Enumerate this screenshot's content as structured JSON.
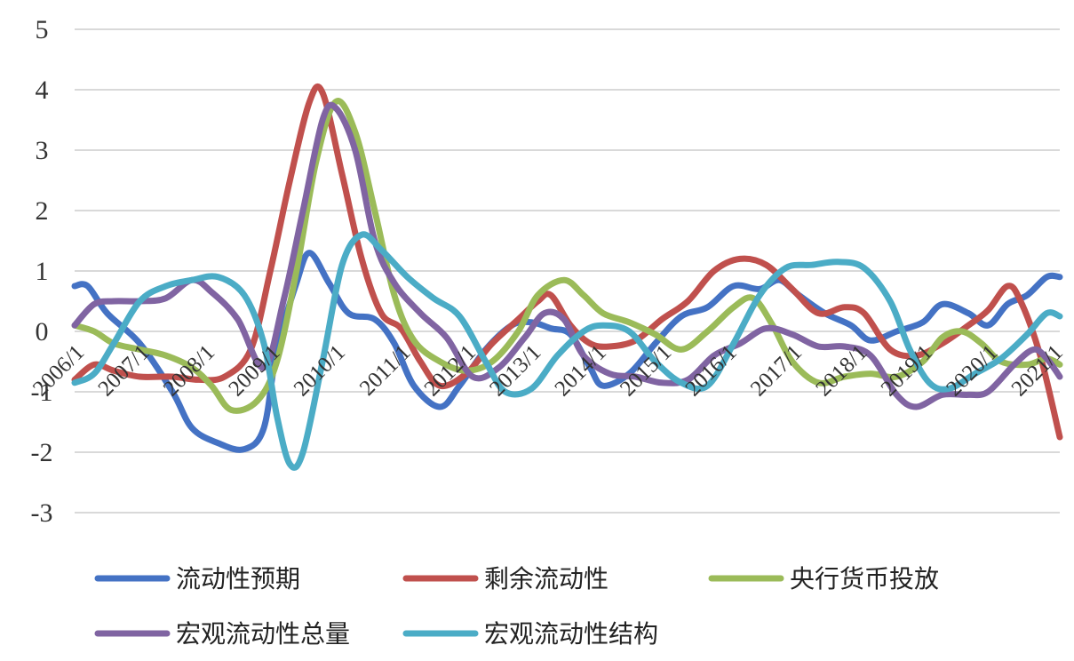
{
  "chart_data": {
    "type": "line",
    "title": "",
    "xlabel": "",
    "ylabel": "",
    "ylim": [
      -3,
      5
    ],
    "yticks": [
      "5",
      "4",
      "3",
      "2",
      "1",
      "0",
      "-1",
      "-2",
      "-3"
    ],
    "xticks": [
      "2006/1",
      "2007/1",
      "2008/1",
      "2009/1",
      "2010/1",
      "2011/1",
      "2012/1",
      "2013/1",
      "2014/1",
      "2015/1",
      "2016/1",
      "2017/1",
      "2018/1",
      "2019/1",
      "2020/1",
      "2021/1"
    ],
    "grid": true,
    "legend_position": "bottom",
    "series": [
      {
        "name": "流动性预期",
        "color": "#4472c4",
        "points": [
          [
            2006.0,
            0.75
          ],
          [
            2006.2,
            0.75
          ],
          [
            2006.5,
            0.3
          ],
          [
            2007.0,
            -0.2
          ],
          [
            2007.5,
            -1.0
          ],
          [
            2007.8,
            -1.6
          ],
          [
            2008.2,
            -1.85
          ],
          [
            2008.6,
            -1.95
          ],
          [
            2008.9,
            -1.6
          ],
          [
            2009.1,
            -0.3
          ],
          [
            2009.4,
            0.8
          ],
          [
            2009.6,
            1.3
          ],
          [
            2009.9,
            0.8
          ],
          [
            2010.2,
            0.3
          ],
          [
            2010.6,
            0.2
          ],
          [
            2010.9,
            -0.2
          ],
          [
            2011.2,
            -0.9
          ],
          [
            2011.6,
            -1.25
          ],
          [
            2011.9,
            -0.9
          ],
          [
            2012.3,
            -0.3
          ],
          [
            2012.7,
            0.1
          ],
          [
            2013.0,
            0.15
          ],
          [
            2013.3,
            0.05
          ],
          [
            2013.6,
            -0.05
          ],
          [
            2013.9,
            -0.6
          ],
          [
            2014.1,
            -0.9
          ],
          [
            2014.5,
            -0.7
          ],
          [
            2014.9,
            -0.2
          ],
          [
            2015.3,
            0.25
          ],
          [
            2015.7,
            0.4
          ],
          [
            2016.1,
            0.75
          ],
          [
            2016.5,
            0.7
          ],
          [
            2016.8,
            0.85
          ],
          [
            2017.1,
            0.6
          ],
          [
            2017.5,
            0.3
          ],
          [
            2017.9,
            0.1
          ],
          [
            2018.2,
            -0.15
          ],
          [
            2018.6,
            0.0
          ],
          [
            2019.0,
            0.15
          ],
          [
            2019.3,
            0.45
          ],
          [
            2019.7,
            0.3
          ],
          [
            2020.0,
            0.1
          ],
          [
            2020.3,
            0.45
          ],
          [
            2020.6,
            0.6
          ],
          [
            2020.9,
            0.9
          ],
          [
            2021.1,
            0.9
          ]
        ]
      },
      {
        "name": "剩余流动性",
        "color": "#c0504d",
        "points": [
          [
            2006.0,
            -0.8
          ],
          [
            2006.3,
            -0.55
          ],
          [
            2006.6,
            -0.65
          ],
          [
            2007.0,
            -0.75
          ],
          [
            2007.5,
            -0.75
          ],
          [
            2007.9,
            -0.8
          ],
          [
            2008.3,
            -0.75
          ],
          [
            2008.7,
            -0.3
          ],
          [
            2009.0,
            1.0
          ],
          [
            2009.3,
            2.5
          ],
          [
            2009.6,
            3.8
          ],
          [
            2009.8,
            3.95
          ],
          [
            2010.1,
            2.6
          ],
          [
            2010.4,
            1.2
          ],
          [
            2010.7,
            0.3
          ],
          [
            2011.0,
            0.05
          ],
          [
            2011.3,
            -0.5
          ],
          [
            2011.6,
            -0.9
          ],
          [
            2012.0,
            -0.7
          ],
          [
            2012.4,
            -0.2
          ],
          [
            2012.8,
            0.2
          ],
          [
            2013.1,
            0.5
          ],
          [
            2013.3,
            0.6
          ],
          [
            2013.6,
            0.1
          ],
          [
            2013.9,
            -0.2
          ],
          [
            2014.2,
            -0.25
          ],
          [
            2014.6,
            -0.15
          ],
          [
            2015.0,
            0.2
          ],
          [
            2015.4,
            0.5
          ],
          [
            2015.8,
            1.0
          ],
          [
            2016.2,
            1.2
          ],
          [
            2016.6,
            1.1
          ],
          [
            2017.0,
            0.7
          ],
          [
            2017.4,
            0.3
          ],
          [
            2017.8,
            0.4
          ],
          [
            2018.1,
            0.3
          ],
          [
            2018.5,
            -0.3
          ],
          [
            2018.9,
            -0.4
          ],
          [
            2019.3,
            -0.2
          ],
          [
            2019.7,
            0.1
          ],
          [
            2020.0,
            0.35
          ],
          [
            2020.3,
            0.75
          ],
          [
            2020.5,
            0.5
          ],
          [
            2020.8,
            -0.4
          ],
          [
            2021.1,
            -1.75
          ]
        ]
      },
      {
        "name": "央行货币投放",
        "color": "#9bbb59",
        "points": [
          [
            2006.0,
            0.1
          ],
          [
            2006.3,
            0.0
          ],
          [
            2006.6,
            -0.2
          ],
          [
            2007.0,
            -0.3
          ],
          [
            2007.4,
            -0.4
          ],
          [
            2007.8,
            -0.6
          ],
          [
            2008.1,
            -0.9
          ],
          [
            2008.4,
            -1.3
          ],
          [
            2008.8,
            -1.15
          ],
          [
            2009.1,
            -0.5
          ],
          [
            2009.4,
            1.0
          ],
          [
            2009.7,
            2.8
          ],
          [
            2010.0,
            3.8
          ],
          [
            2010.3,
            3.3
          ],
          [
            2010.6,
            2.0
          ],
          [
            2010.9,
            0.6
          ],
          [
            2011.2,
            -0.15
          ],
          [
            2011.6,
            -0.5
          ],
          [
            2012.0,
            -0.65
          ],
          [
            2012.4,
            -0.5
          ],
          [
            2012.8,
            0.0
          ],
          [
            2013.1,
            0.6
          ],
          [
            2013.5,
            0.85
          ],
          [
            2013.8,
            0.6
          ],
          [
            2014.1,
            0.3
          ],
          [
            2014.5,
            0.15
          ],
          [
            2014.9,
            -0.05
          ],
          [
            2015.3,
            -0.3
          ],
          [
            2015.7,
            0.0
          ],
          [
            2016.1,
            0.4
          ],
          [
            2016.4,
            0.55
          ],
          [
            2016.7,
            0.1
          ],
          [
            2017.0,
            -0.5
          ],
          [
            2017.4,
            -0.85
          ],
          [
            2017.8,
            -0.75
          ],
          [
            2018.2,
            -0.7
          ],
          [
            2018.6,
            -0.75
          ],
          [
            2019.0,
            -0.5
          ],
          [
            2019.3,
            -0.1
          ],
          [
            2019.6,
            0.0
          ],
          [
            2019.9,
            -0.2
          ],
          [
            2020.2,
            -0.5
          ],
          [
            2020.6,
            -0.55
          ],
          [
            2020.9,
            -0.45
          ],
          [
            2021.1,
            -0.55
          ]
        ]
      },
      {
        "name": "宏观流动性总量",
        "color": "#8064a2",
        "points": [
          [
            2006.0,
            0.1
          ],
          [
            2006.3,
            0.45
          ],
          [
            2006.6,
            0.5
          ],
          [
            2007.0,
            0.5
          ],
          [
            2007.4,
            0.55
          ],
          [
            2007.8,
            0.85
          ],
          [
            2008.1,
            0.65
          ],
          [
            2008.5,
            0.2
          ],
          [
            2008.9,
            -0.6
          ],
          [
            2009.2,
            0.5
          ],
          [
            2009.5,
            2.0
          ],
          [
            2009.8,
            3.5
          ],
          [
            2010.0,
            3.7
          ],
          [
            2010.3,
            3.0
          ],
          [
            2010.6,
            1.5
          ],
          [
            2010.9,
            0.8
          ],
          [
            2011.3,
            0.3
          ],
          [
            2011.7,
            -0.1
          ],
          [
            2012.1,
            -0.75
          ],
          [
            2012.5,
            -0.6
          ],
          [
            2012.9,
            -0.1
          ],
          [
            2013.2,
            0.3
          ],
          [
            2013.5,
            0.2
          ],
          [
            2013.8,
            -0.4
          ],
          [
            2014.2,
            -0.7
          ],
          [
            2014.6,
            -0.75
          ],
          [
            2015.0,
            -0.85
          ],
          [
            2015.4,
            -0.8
          ],
          [
            2015.8,
            -0.4
          ],
          [
            2016.2,
            -0.2
          ],
          [
            2016.6,
            0.05
          ],
          [
            2017.0,
            -0.05
          ],
          [
            2017.4,
            -0.25
          ],
          [
            2017.8,
            -0.25
          ],
          [
            2018.2,
            -0.4
          ],
          [
            2018.6,
            -1.05
          ],
          [
            2018.9,
            -1.25
          ],
          [
            2019.3,
            -1.05
          ],
          [
            2019.7,
            -1.05
          ],
          [
            2020.0,
            -1.0
          ],
          [
            2020.4,
            -0.55
          ],
          [
            2020.7,
            -0.3
          ],
          [
            2020.9,
            -0.45
          ],
          [
            2021.1,
            -0.75
          ]
        ]
      },
      {
        "name": "宏观流动性结构",
        "color": "#4bacc6",
        "points": [
          [
            2006.0,
            -0.85
          ],
          [
            2006.3,
            -0.7
          ],
          [
            2006.6,
            -0.2
          ],
          [
            2007.0,
            0.5
          ],
          [
            2007.4,
            0.75
          ],
          [
            2007.8,
            0.85
          ],
          [
            2008.2,
            0.9
          ],
          [
            2008.6,
            0.6
          ],
          [
            2008.9,
            -0.2
          ],
          [
            2009.1,
            -1.4
          ],
          [
            2009.3,
            -2.2
          ],
          [
            2009.5,
            -2.0
          ],
          [
            2009.8,
            -0.5
          ],
          [
            2010.1,
            1.1
          ],
          [
            2010.4,
            1.6
          ],
          [
            2010.7,
            1.35
          ],
          [
            2011.1,
            0.9
          ],
          [
            2011.5,
            0.55
          ],
          [
            2011.9,
            0.25
          ],
          [
            2012.3,
            -0.5
          ],
          [
            2012.6,
            -1.0
          ],
          [
            2013.0,
            -0.95
          ],
          [
            2013.4,
            -0.4
          ],
          [
            2013.8,
            0.0
          ],
          [
            2014.1,
            0.1
          ],
          [
            2014.5,
            0.0
          ],
          [
            2014.9,
            -0.5
          ],
          [
            2015.3,
            -0.85
          ],
          [
            2015.7,
            -0.9
          ],
          [
            2016.1,
            -0.2
          ],
          [
            2016.5,
            0.6
          ],
          [
            2016.9,
            1.05
          ],
          [
            2017.3,
            1.1
          ],
          [
            2017.7,
            1.15
          ],
          [
            2018.1,
            1.05
          ],
          [
            2018.5,
            0.5
          ],
          [
            2018.8,
            -0.3
          ],
          [
            2019.1,
            -0.85
          ],
          [
            2019.4,
            -0.95
          ],
          [
            2019.8,
            -0.7
          ],
          [
            2020.2,
            -0.45
          ],
          [
            2020.6,
            -0.05
          ],
          [
            2020.9,
            0.3
          ],
          [
            2021.1,
            0.25
          ]
        ]
      }
    ]
  }
}
